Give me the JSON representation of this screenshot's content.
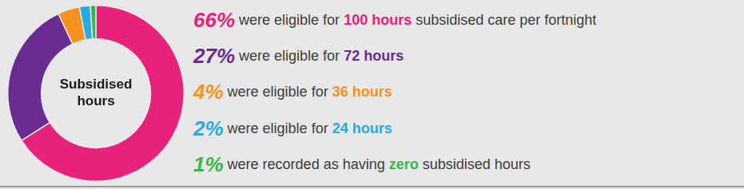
{
  "chart_data": {
    "type": "donut",
    "values": [
      66,
      27,
      4,
      2,
      1
    ],
    "colors": [
      "#e8217a",
      "#6b2c91",
      "#f5921e",
      "#29abe2",
      "#39b54a"
    ],
    "center_label": "Subsidised\nhours",
    "legend": false,
    "annotations": [
      {
        "parts": [
          {
            "text": "66%",
            "color": "#e8217a"
          },
          {
            "text": " were eligible for ",
            "color": "#3d3d3d"
          },
          {
            "text": "100 hours",
            "color": "#e8217a"
          },
          {
            "text": " subsidised care per fortnight",
            "color": "#3d3d3d"
          }
        ]
      },
      {
        "parts": [
          {
            "text": "27%",
            "color": "#6b2c91"
          },
          {
            "text": " were eligible for ",
            "color": "#3d3d3d"
          },
          {
            "text": "72 hours",
            "color": "#6b2c91"
          }
        ]
      },
      {
        "parts": [
          {
            "text": "4%",
            "color": "#f5921e"
          },
          {
            "text": " were eligible for ",
            "color": "#3d3d3d"
          },
          {
            "text": "36 hours",
            "color": "#f5921e"
          }
        ]
      },
      {
        "parts": [
          {
            "text": "2%",
            "color": "#29abe2"
          },
          {
            "text": " were eligible for ",
            "color": "#3d3d3d"
          },
          {
            "text": "24 hours",
            "color": "#29abe2"
          }
        ]
      },
      {
        "parts": [
          {
            "text": "1%",
            "color": "#39b54a"
          },
          {
            "text": " were recorded as having ",
            "color": "#3d3d3d"
          },
          {
            "text": "zero",
            "color": "#39b54a"
          },
          {
            "text": " subsidised hours",
            "color": "#3d3d3d"
          }
        ]
      }
    ]
  }
}
